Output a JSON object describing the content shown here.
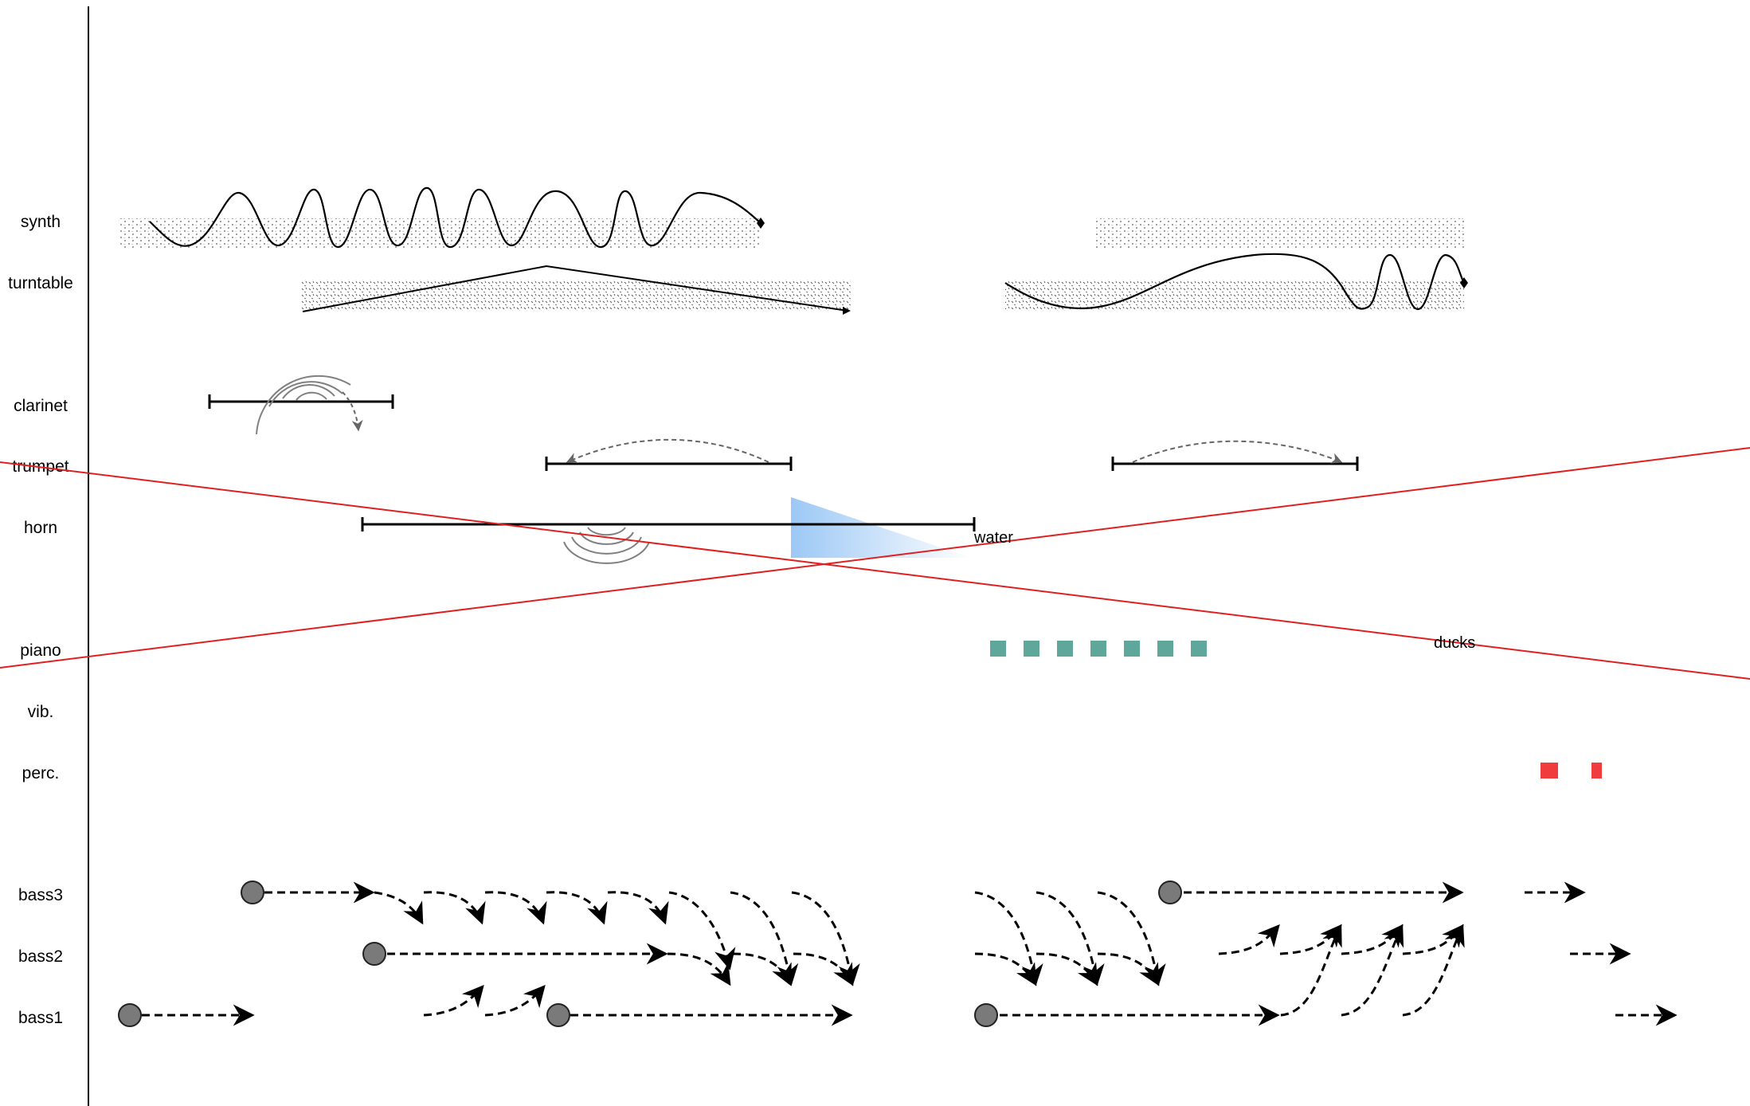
{
  "instruments": [
    "synth",
    "turntable",
    "clarinet",
    "trumpet",
    "horn",
    "piano",
    "vib.",
    "perc.",
    "bass3",
    "bass2",
    "bass1"
  ],
  "annotations": {
    "water": "water",
    "ducks": "ducks"
  },
  "colors": {
    "line": "#000000",
    "red_line": "#e02020",
    "piano_blocks": "#5fa79a",
    "perc_blocks": "#f03c3c",
    "water_gradient_start": "#9cc8f5",
    "bass_node": "#7a7a7a",
    "gesture_gray": "#808080"
  },
  "icons": [
    "concentric-arcs-icon",
    "curved-arrow-icon",
    "water-wedge-icon",
    "filled-circle-node-icon",
    "dashed-arrow-icon"
  ]
}
